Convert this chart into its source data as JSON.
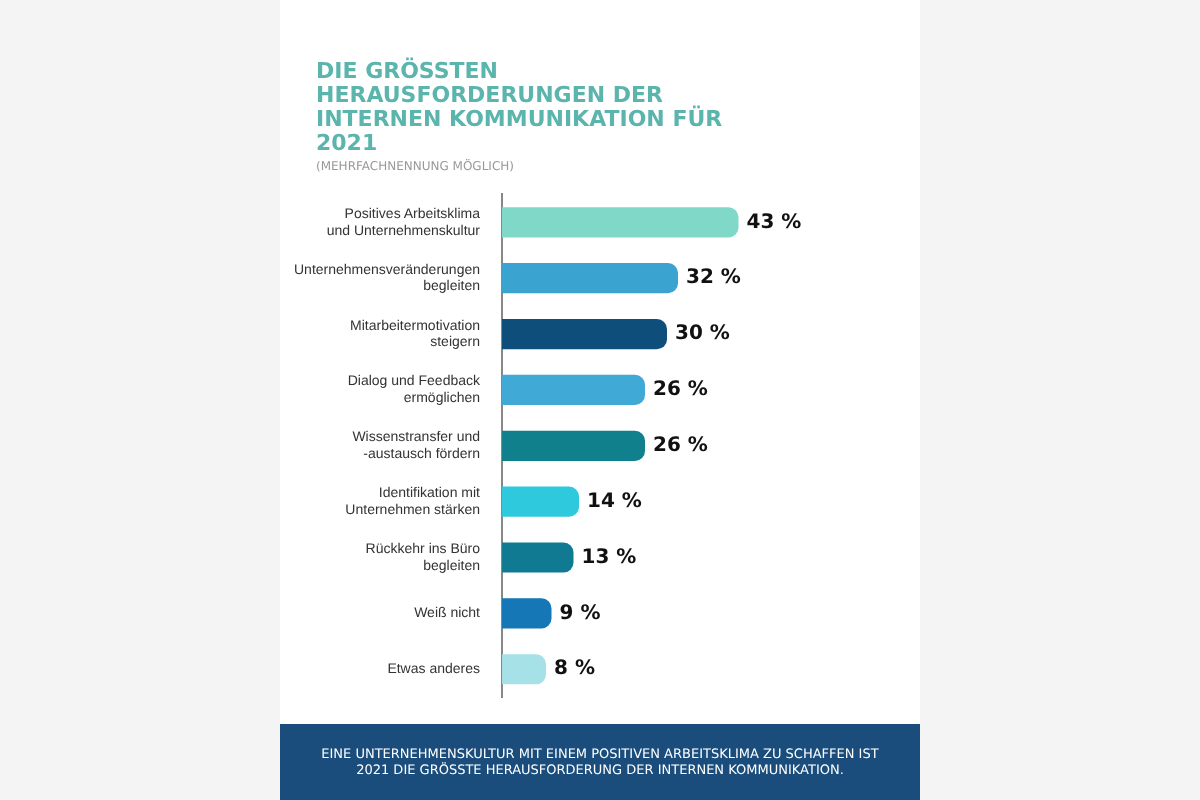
{
  "chart_data": {
    "type": "bar",
    "orientation": "horizontal",
    "title": "DIE GRÖSSTEN HERAUSFORDERUNGEN DER INTERNEN KOMMUNIKATION FÜR 2021",
    "subtitle": "(MEHRFACHNENNUNG MÖGLICH)",
    "categories": [
      "Positives Arbeitsklima und Unternehmenskultur",
      "Unternehmensveränderungen begleiten",
      "Mitarbeitermotivation steigern",
      "Dialog und Feedback ermöglichen",
      "Wissenstransfer und -austausch fördern",
      "Identifikation mit Unternehmen stärken",
      "Rückkehr ins Büro begleiten",
      "Weiß nicht",
      "Etwas anderes"
    ],
    "values": [
      43,
      32,
      30,
      26,
      26,
      14,
      13,
      9,
      8
    ],
    "colors": [
      "#7fd8c8",
      "#3aa3cf",
      "#0d4f7a",
      "#41a9d6",
      "#10808c",
      "#2ec9dc",
      "#117a93",
      "#1577b5",
      "#a5e1e6"
    ],
    "value_labels": [
      "43 %",
      "32 %",
      "30 %",
      "26 %",
      "26 %",
      "14 %",
      "13 %",
      "9 %",
      "8 %"
    ],
    "annotations": [
      "EINE UNTERNEHMENSKULTUR MIT EINEM POSITIVEN ARBEITSKLIMA ZU SCHAFFEN IST 2021 DIE GRÖSSTE HERAUSFORDERUNG DER INTERNEN KOMMUNIKATION."
    ],
    "legend": false
  }
}
